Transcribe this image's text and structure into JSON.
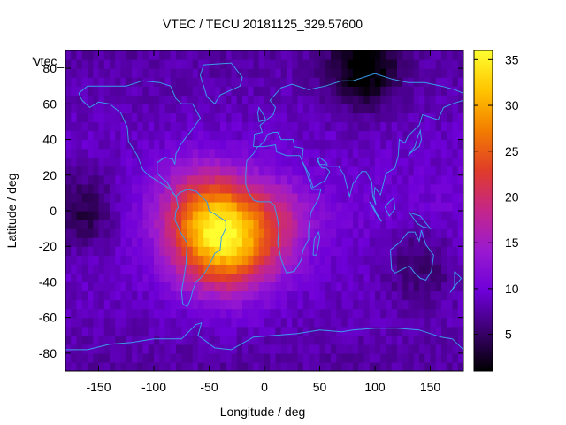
{
  "chart_data": {
    "type": "heatmap",
    "title": "VTEC / TECU 20181125_329.57600",
    "xlabel": "Longitude / deg",
    "ylabel": "Latitude / deg",
    "series_label": "'vtec_",
    "xlim": [
      -180,
      180
    ],
    "ylim": [
      -90,
      90
    ],
    "x_ticks": [
      -150,
      -100,
      -50,
      0,
      50,
      100,
      150
    ],
    "y_ticks": [
      -80,
      -60,
      -40,
      -20,
      0,
      20,
      40,
      60,
      80
    ],
    "colorbar": {
      "min": 1,
      "max": 36,
      "ticks": [
        5,
        10,
        15,
        20,
        25,
        30,
        35
      ]
    },
    "features": {
      "background_tecu": 10,
      "peak": {
        "lon": -35,
        "lat": -15,
        "value_tecu": 35
      },
      "anomaly_region_lon": [
        -90,
        50
      ],
      "anomaly_region_lat": [
        -50,
        30
      ],
      "low_regions": [
        {
          "lon": -165,
          "lat": 0,
          "value_tecu": 4
        },
        {
          "lon": 90,
          "lat": 80,
          "value_tecu": 2
        },
        {
          "lon": 140,
          "lat": -30,
          "value_tecu": 6
        }
      ]
    },
    "overlay": "coastlines"
  },
  "colors": {
    "coastline": "#3a9be8",
    "palette": [
      "#000000",
      "#3b006e",
      "#6e00d8",
      "#9a1ad0",
      "#c4268a",
      "#e03c2a",
      "#f37d00",
      "#ffc400",
      "#ffff30"
    ]
  }
}
